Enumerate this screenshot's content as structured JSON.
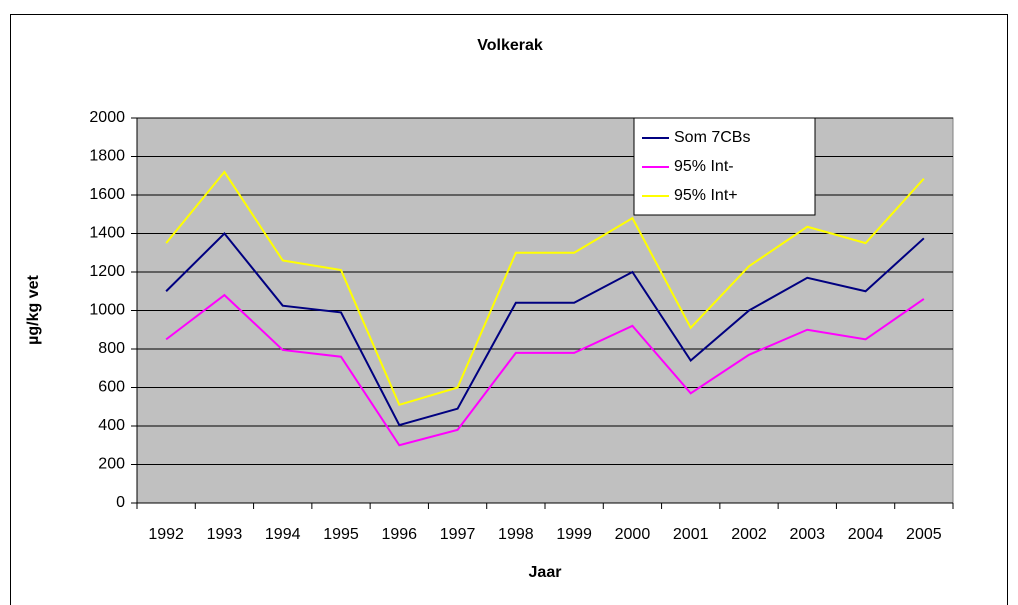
{
  "chart_data": {
    "type": "line",
    "title": "Volkerak",
    "x_label": "Jaar",
    "y_label": "µg/kg vet",
    "categories": [
      "1992",
      "1993",
      "1994",
      "1995",
      "1996",
      "1997",
      "1998",
      "1999",
      "2000",
      "2001",
      "2002",
      "2003",
      "2004",
      "2005"
    ],
    "series": [
      {
        "name": "Som 7CBs",
        "color": "#000080",
        "values": [
          1100,
          1400,
          1025,
          990,
          405,
          490,
          1040,
          1040,
          1200,
          740,
          1000,
          1170,
          1100,
          1375
        ]
      },
      {
        "name": "95% Int-",
        "color": "#ff00ff",
        "values": [
          850,
          1080,
          795,
          760,
          300,
          380,
          780,
          780,
          920,
          570,
          770,
          900,
          850,
          1060
        ]
      },
      {
        "name": "95% Int+",
        "color": "#ffff00",
        "values": [
          1350,
          1720,
          1260,
          1210,
          510,
          600,
          1300,
          1300,
          1480,
          910,
          1230,
          1435,
          1350,
          1685
        ]
      }
    ],
    "ylim": [
      0,
      2000
    ],
    "yticks": [
      0,
      200,
      400,
      600,
      800,
      1000,
      1200,
      1400,
      1600,
      1800,
      2000
    ],
    "grid": true,
    "legend": "top-right",
    "plot_color": "#c0c0c0"
  }
}
